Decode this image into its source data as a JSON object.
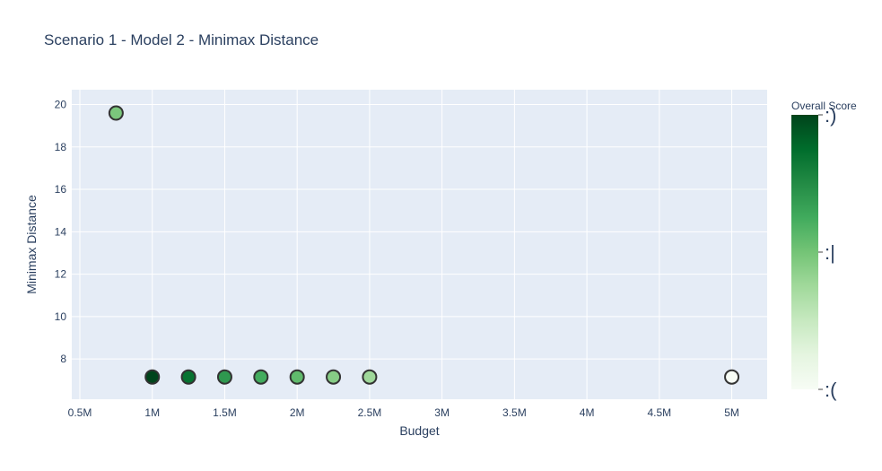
{
  "chart_data": {
    "type": "scatter",
    "title": "Scenario 1 - Model 2 - Minimax Distance",
    "xlabel": "Budget",
    "ylabel": "Minimax Distance",
    "xlim": [
      500000,
      5300000
    ],
    "ylim": [
      6.1,
      20.7
    ],
    "x_ticks": [
      {
        "value": 500000,
        "label": "0.5M"
      },
      {
        "value": 1000000,
        "label": "1M"
      },
      {
        "value": 1500000,
        "label": "1.5M"
      },
      {
        "value": 2000000,
        "label": "2M"
      },
      {
        "value": 2500000,
        "label": "2.5M"
      },
      {
        "value": 3000000,
        "label": "3M"
      },
      {
        "value": 3500000,
        "label": "3.5M"
      },
      {
        "value": 4000000,
        "label": "4M"
      },
      {
        "value": 4500000,
        "label": "4.5M"
      },
      {
        "value": 5000000,
        "label": "5M"
      }
    ],
    "y_ticks": [
      {
        "value": 8,
        "label": "8"
      },
      {
        "value": 10,
        "label": "10"
      },
      {
        "value": 12,
        "label": "12"
      },
      {
        "value": 14,
        "label": "14"
      },
      {
        "value": 16,
        "label": "16"
      },
      {
        "value": 18,
        "label": "18"
      },
      {
        "value": 20,
        "label": "20"
      }
    ],
    "points": [
      {
        "x": 750000,
        "y": 19.6,
        "score": 0.48
      },
      {
        "x": 1000000,
        "y": 7.15,
        "score": 1.0
      },
      {
        "x": 1250000,
        "y": 7.15,
        "score": 0.85
      },
      {
        "x": 1500000,
        "y": 7.15,
        "score": 0.7
      },
      {
        "x": 1750000,
        "y": 7.15,
        "score": 0.62
      },
      {
        "x": 2000000,
        "y": 7.15,
        "score": 0.55
      },
      {
        "x": 2250000,
        "y": 7.15,
        "score": 0.45
      },
      {
        "x": 2500000,
        "y": 7.15,
        "score": 0.38
      },
      {
        "x": 5000000,
        "y": 7.15,
        "score": 0.0
      }
    ],
    "colorbar": {
      "title": "Overall Score",
      "colorscale": "Greens",
      "range": [
        0,
        1
      ],
      "ticks": [
        {
          "value": 1.0,
          "label": ":)"
        },
        {
          "value": 0.5,
          "label": ":|"
        },
        {
          "value": 0.0,
          "label": ":("
        }
      ]
    },
    "grid": true,
    "plot_bgcolor": "#e5ecf6"
  }
}
